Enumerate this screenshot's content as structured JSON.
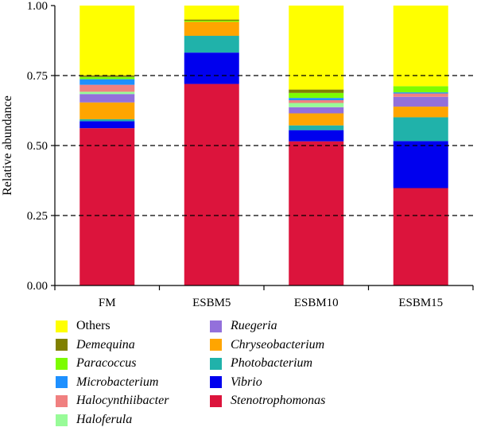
{
  "chart_data": {
    "type": "bar",
    "stacked": true,
    "ylabel": "Relative abundance",
    "xlabel": "",
    "ylim": [
      0,
      1
    ],
    "yticks": [
      "0.00",
      "0.25",
      "0.50",
      "0.75",
      "1.00"
    ],
    "grid": "dashed horizontal at 0.25, 0.50, 0.75",
    "legend_placement": "bottom",
    "categories": [
      "FM",
      "ESBM5",
      "ESBM10",
      "ESBM15"
    ],
    "series": [
      {
        "name": "Stenotrophomonas",
        "italic": true,
        "color": "#DC143C",
        "values": [
          0.562,
          0.72,
          0.515,
          0.348
        ]
      },
      {
        "name": "Vibrio",
        "italic": true,
        "color": "#0000EE",
        "values": [
          0.025,
          0.112,
          0.04,
          0.168
        ]
      },
      {
        "name": "Photobacterium",
        "italic": true,
        "color": "#20B2AA",
        "values": [
          0.007,
          0.06,
          0.017,
          0.085
        ]
      },
      {
        "name": "Chryseobacterium",
        "italic": true,
        "color": "#FFA500",
        "values": [
          0.06,
          0.05,
          0.043,
          0.038
        ]
      },
      {
        "name": "Ruegeria",
        "italic": true,
        "color": "#9370DB",
        "values": [
          0.03,
          0.0,
          0.022,
          0.035
        ]
      },
      {
        "name": "Haloferula",
        "italic": true,
        "color": "#98FB98",
        "values": [
          0.008,
          0.0,
          0.015,
          0.0
        ]
      },
      {
        "name": "Halocynthiibacter",
        "italic": true,
        "color": "#F08080",
        "values": [
          0.025,
          0.0,
          0.01,
          0.012
        ]
      },
      {
        "name": "Microbacterium",
        "italic": true,
        "color": "#1E90FF",
        "values": [
          0.02,
          0.0,
          0.008,
          0.004
        ]
      },
      {
        "name": "Paracoccus",
        "italic": true,
        "color": "#7CFC00",
        "values": [
          0.008,
          0.004,
          0.018,
          0.022
        ]
      },
      {
        "name": "Demequina",
        "italic": true,
        "color": "#808000",
        "values": [
          0.006,
          0.004,
          0.012,
          0.0
        ]
      },
      {
        "name": "Others",
        "italic": false,
        "color": "#FFFF00",
        "values": [
          0.249,
          0.05,
          0.3,
          0.288
        ]
      }
    ],
    "legend_order": [
      "Others",
      "Demequina",
      "Paracoccus",
      "Microbacterium",
      "Halocynthiibacter",
      "Haloferula",
      "Ruegeria",
      "Chryseobacterium",
      "Photobacterium",
      "Vibrio",
      "Stenotrophomonas"
    ]
  }
}
